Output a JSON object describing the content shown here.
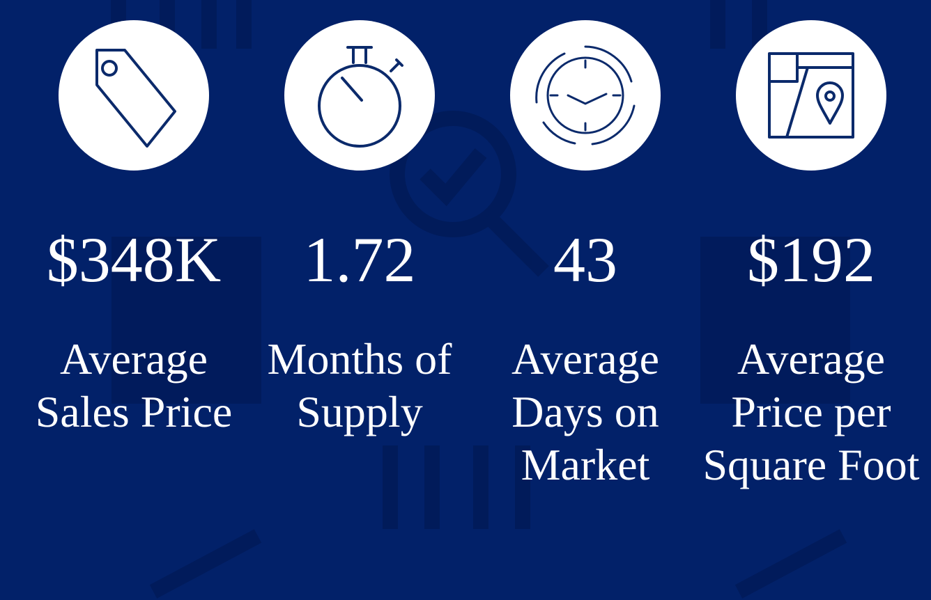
{
  "colors": {
    "background": "#022169",
    "circle": "#ffffff",
    "icon_stroke": "#0b2a6b",
    "text": "#ffffff"
  },
  "stats": [
    {
      "icon": "price-tag-icon",
      "value": "$348K",
      "label": "Average Sales Price"
    },
    {
      "icon": "stopwatch-icon",
      "value": "1.72",
      "label": "Months of Supply"
    },
    {
      "icon": "clock-icon",
      "value": "43",
      "label": "Average Days on Market"
    },
    {
      "icon": "map-pin-icon",
      "value": "$192",
      "label": "Average Price per Square Foot"
    }
  ]
}
